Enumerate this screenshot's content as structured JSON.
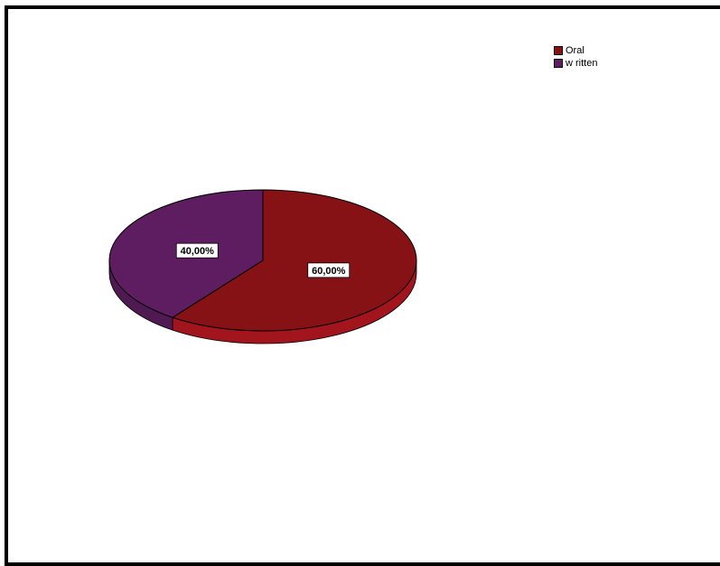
{
  "chart_data": {
    "type": "pie",
    "title": "",
    "legend_position": "top-right",
    "slices": [
      {
        "label": "Oral",
        "value": 60.0,
        "display": "60,00%",
        "color": "#861216",
        "side_color": "#a3151d"
      },
      {
        "label": "w ritten",
        "value": 40.0,
        "display": "40,00%",
        "color": "#5e1c61",
        "side_color": "#4e1a51"
      }
    ]
  }
}
